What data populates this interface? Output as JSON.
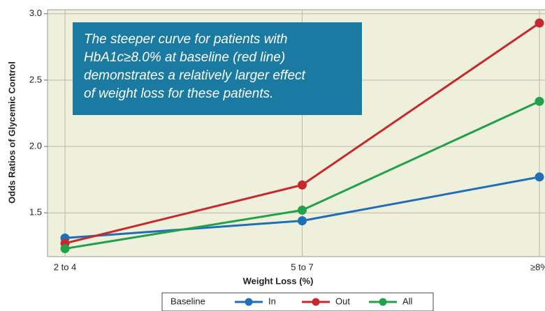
{
  "chart_data": {
    "type": "line",
    "x_label": "Weight Loss (%)",
    "y_label": "Odds Ratios of Glycemic Control",
    "annotation": [
      "The steeper curve for patients with",
      "HbA1c≥8.0%  at baseline (red line)",
      "demonstrates a relatively larger effect",
      "of weight loss for these  patients."
    ],
    "categories": [
      "2 to 4",
      "5 to 7",
      "≥8%"
    ],
    "series": [
      {
        "name": "In",
        "color": "#1f6fb8",
        "values": [
          1.31,
          1.44,
          1.77
        ]
      },
      {
        "name": "Out",
        "color": "#c8282b",
        "values": [
          1.27,
          1.71,
          2.93
        ]
      },
      {
        "name": "All",
        "color": "#22a04a",
        "values": [
          1.23,
          1.52,
          2.34
        ]
      }
    ],
    "legend_title": "Baseline",
    "legend": "bottom",
    "ylim": [
      1.17,
      3.03
    ],
    "yticks": [
      {
        "value": 1.5,
        "label": "1.5"
      },
      {
        "value": 2,
        "label": "2.0"
      },
      {
        "value": 2.5,
        "label": "2.5"
      },
      {
        "value": 3,
        "label": "3.0"
      }
    ],
    "grid": true
  }
}
